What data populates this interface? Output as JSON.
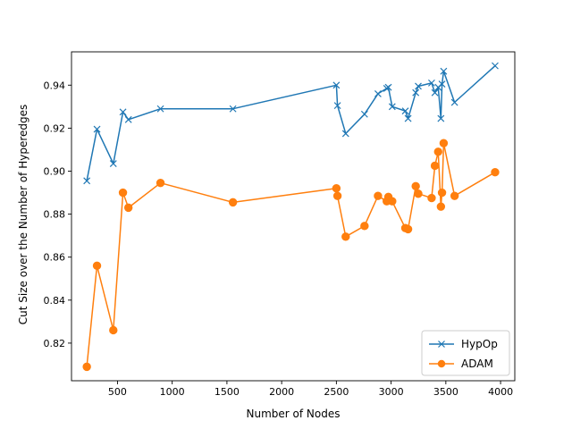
{
  "chart_data": {
    "type": "line",
    "title": "",
    "xlabel": "Number of Nodes",
    "ylabel": "Cut Size over the Number of Hyperedges",
    "xlim": [
      80,
      4130
    ],
    "ylim": [
      0.8025,
      0.9555
    ],
    "xticks": [
      500,
      1000,
      1500,
      2000,
      2500,
      3000,
      3500,
      4000
    ],
    "xtick_labels": [
      "500",
      "1000",
      "1500",
      "2000",
      "2500",
      "3000",
      "3500",
      "4000"
    ],
    "yticks": [
      0.82,
      0.84,
      0.86,
      0.88,
      0.9,
      0.92,
      0.94
    ],
    "ytick_labels": [
      "0.82",
      "0.84",
      "0.86",
      "0.88",
      "0.90",
      "0.92",
      "0.94"
    ],
    "grid": false,
    "legend_position": "bottom-right",
    "series": [
      {
        "name": "HypOp",
        "marker": "x",
        "color": "#1f77b4",
        "x": [
          220,
          313,
          462,
          550,
          600,
          893,
          1555,
          2500,
          2510,
          2585,
          2757,
          2880,
          2960,
          2975,
          3010,
          3130,
          3155,
          3225,
          3248,
          3370,
          3400,
          3430,
          3455,
          3465,
          3480,
          3580,
          3950
        ],
        "y": [
          0.8955,
          0.9195,
          0.9035,
          0.9275,
          0.924,
          0.929,
          0.929,
          0.94,
          0.9305,
          0.9175,
          0.9265,
          0.936,
          0.9385,
          0.939,
          0.93,
          0.928,
          0.9245,
          0.9365,
          0.9395,
          0.941,
          0.9365,
          0.939,
          0.9245,
          0.9405,
          0.9465,
          0.932,
          0.949
        ]
      },
      {
        "name": "ADAM",
        "marker": "o",
        "color": "#ff7f0e",
        "x": [
          220,
          313,
          462,
          550,
          600,
          893,
          1555,
          2500,
          2510,
          2585,
          2757,
          2880,
          2960,
          2975,
          3010,
          3130,
          3155,
          3225,
          3248,
          3370,
          3400,
          3430,
          3455,
          3465,
          3480,
          3580,
          3950
        ],
        "y": [
          0.809,
          0.856,
          0.826,
          0.89,
          0.883,
          0.8945,
          0.8855,
          0.892,
          0.8885,
          0.8695,
          0.8745,
          0.8885,
          0.886,
          0.888,
          0.886,
          0.8735,
          0.873,
          0.893,
          0.8895,
          0.8875,
          0.9025,
          0.909,
          0.8835,
          0.89,
          0.913,
          0.8885,
          0.8995
        ]
      }
    ]
  }
}
